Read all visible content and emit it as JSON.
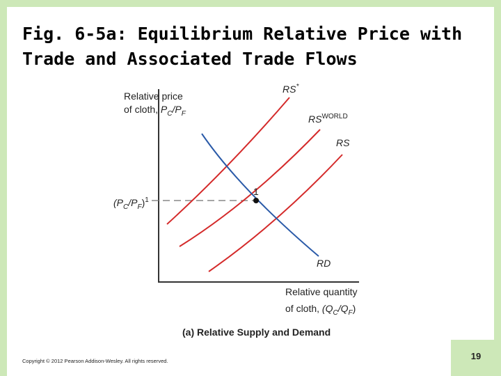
{
  "slide": {
    "title": {
      "line1": "Fig. 6-5a: Equilibrium Relative Price with",
      "line2": "Trade and Associated Trade Flows"
    },
    "figure": {
      "y_axis_label": {
        "line1": "Relative price",
        "line2": "of cloth, ",
        "ratio": [
          "P",
          "C",
          "/P",
          "F"
        ]
      },
      "x_axis_label": {
        "line1": "Relative quantity",
        "line2": "of cloth, ",
        "ratio": [
          "(Q",
          "C",
          "/Q",
          "F",
          ")"
        ]
      },
      "curves": {
        "rs_star": [
          "RS",
          "*"
        ],
        "rs_world": [
          "RS",
          "WORLD"
        ],
        "rs": "RS",
        "rd": "RD"
      },
      "equilibrium_price": [
        "(P",
        "C",
        "/P",
        "F",
        ")",
        "1"
      ],
      "equilibrium_point": "1",
      "caption": "(a) Relative Supply and Demand"
    },
    "copyright": "Copyright © 2012 Pearson Addison-Wesley. All rights reserved.",
    "page_number": "19"
  }
}
